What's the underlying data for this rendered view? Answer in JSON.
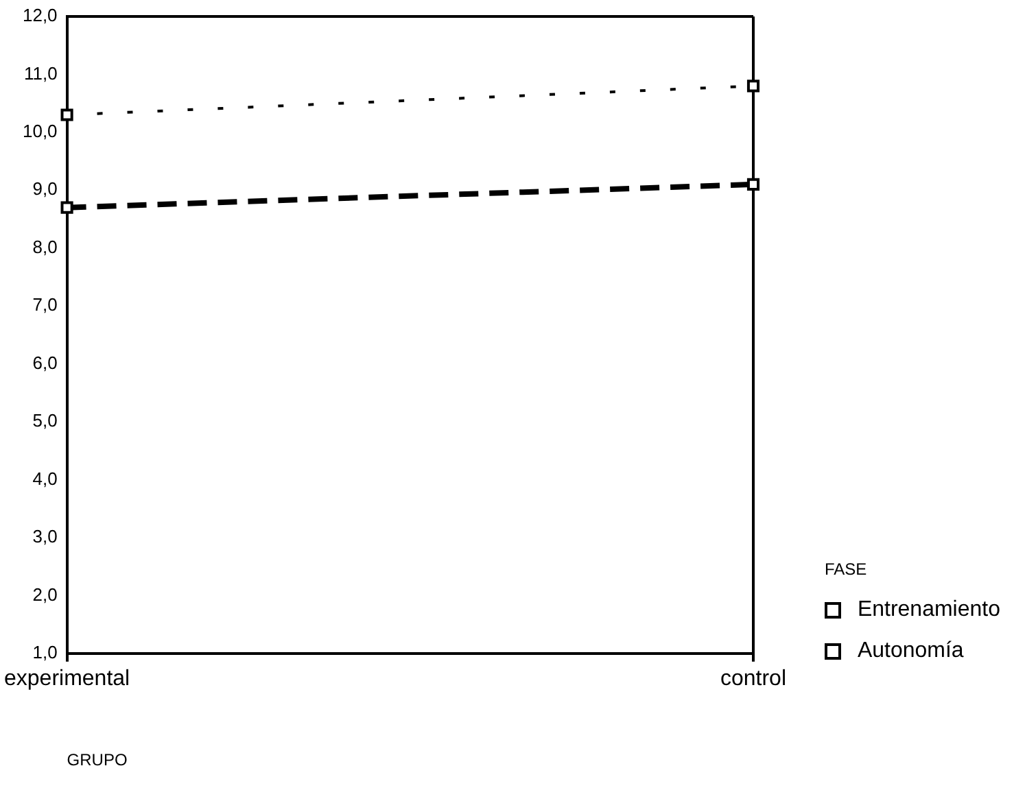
{
  "chart_data": {
    "type": "line",
    "xlabel": "GRUPO",
    "legend_title": "FASE",
    "categories": [
      "experimental",
      "control"
    ],
    "series": [
      {
        "name": "Entrenamiento",
        "color": "#000000",
        "values": [
          10.3,
          10.8
        ],
        "line_style": "dotted"
      },
      {
        "name": "Autonomía",
        "color": "#000000",
        "values": [
          8.7,
          9.1
        ],
        "line_style": "dashed"
      }
    ],
    "ylim": [
      1,
      12
    ],
    "yticks": [
      {
        "value": 1,
        "label": "1,0"
      },
      {
        "value": 2,
        "label": "2,0"
      },
      {
        "value": 3,
        "label": "3,0"
      },
      {
        "value": 4,
        "label": "4,0"
      },
      {
        "value": 5,
        "label": "5,0"
      },
      {
        "value": 6,
        "label": "6,0"
      },
      {
        "value": 7,
        "label": "7,0"
      },
      {
        "value": 8,
        "label": "8,0"
      },
      {
        "value": 9,
        "label": "9,0"
      },
      {
        "value": 10,
        "label": "10,0"
      },
      {
        "value": 11,
        "label": "11,0"
      },
      {
        "value": 12,
        "label": "12,0"
      }
    ],
    "grid": "x",
    "legend": "bottom right",
    "marker": "square"
  }
}
